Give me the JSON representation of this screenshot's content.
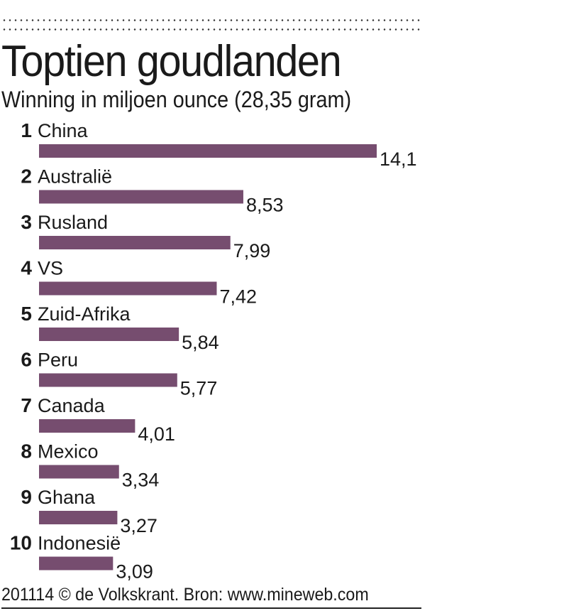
{
  "chart_data": {
    "type": "bar",
    "orientation": "horizontal",
    "title": "Toptien goudlanden",
    "subtitle": "Winning in miljoen ounce (28,35 gram)",
    "ranks": [
      "1",
      "2",
      "3",
      "4",
      "5",
      "6",
      "7",
      "8",
      "9",
      "10"
    ],
    "categories": [
      "China",
      "Australië",
      "Rusland",
      "VS",
      "Zuid-Afrika",
      "Peru",
      "Canada",
      "Mexico",
      "Ghana",
      "Indonesië"
    ],
    "values": [
      14.1,
      8.53,
      7.99,
      7.42,
      5.84,
      5.77,
      4.01,
      3.34,
      3.27,
      3.09
    ],
    "value_labels": [
      "14,1",
      "8,53",
      "7,99",
      "7,42",
      "5,84",
      "5,77",
      "4,01",
      "3,34",
      "3,27",
      "3,09"
    ],
    "xlim": [
      0,
      14.1
    ],
    "grid": false,
    "bar_color": "#764d6f",
    "xlabel": "",
    "ylabel": ""
  },
  "footer": "201114 © de Volkskrant. Bron: www.mineweb.com"
}
